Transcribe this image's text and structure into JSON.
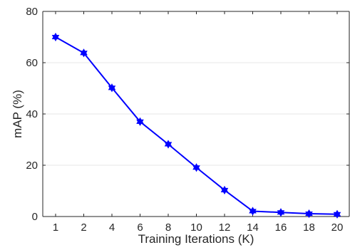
{
  "chart_data": {
    "type": "line",
    "title": "",
    "xlabel": "Training Iterations (K)",
    "ylabel": "mAP (%)",
    "categories": [
      "1",
      "2",
      "4",
      "6",
      "8",
      "10",
      "12",
      "14",
      "16",
      "18",
      "20"
    ],
    "series": [
      {
        "color": "#0000ff",
        "marker": "hexagram",
        "values": [
          70.0,
          63.8,
          50.2,
          37.0,
          28.2,
          19.1,
          10.3,
          2.1,
          1.6,
          1.1,
          0.9
        ]
      }
    ],
    "ylim": [
      0,
      80
    ],
    "yticks": [
      0,
      20,
      40,
      60,
      80
    ],
    "grid": "horizontal",
    "legend": "none"
  }
}
